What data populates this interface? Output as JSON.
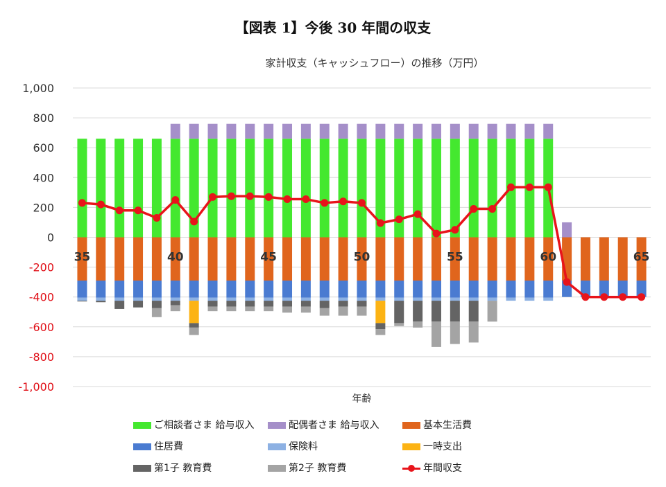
{
  "figure_title": "【図表 1】今後 30 年間の収支",
  "chart_data": {
    "type": "bar",
    "title": "家計収支（キャッシュフロー）の推移（万円）",
    "xlabel": "年齢",
    "ylabel": "",
    "ylim": [
      -1000,
      1000
    ],
    "y_ticks": [
      "1,000",
      "800",
      "600",
      "400",
      "200",
      "0",
      "-200",
      "-400",
      "-600",
      "-800",
      "-1,000"
    ],
    "x": [
      35,
      36,
      37,
      38,
      39,
      40,
      41,
      42,
      43,
      44,
      45,
      46,
      47,
      48,
      49,
      50,
      51,
      52,
      53,
      54,
      55,
      56,
      57,
      58,
      59,
      60,
      61,
      62,
      63,
      64,
      65
    ],
    "x_tick_labels": [
      "35",
      "40",
      "45",
      "50",
      "55",
      "60",
      "65"
    ],
    "stacked": true,
    "colors": {
      "salary_main": "#44e82f",
      "salary_spouse": "#a58fc9",
      "living": "#e0651d",
      "housing": "#4a7bd1",
      "insurance": "#8db1e3",
      "one_time": "#fcb314",
      "edu_child1": "#646464",
      "edu_child2": "#a4a4a4",
      "annual_balance": "#e8141b"
    },
    "series": [
      {
        "key": "salary_main",
        "name": "ご相談者さま 給与収入",
        "values": [
          660,
          660,
          660,
          660,
          660,
          660,
          660,
          660,
          660,
          660,
          660,
          660,
          660,
          660,
          660,
          660,
          660,
          660,
          660,
          660,
          660,
          660,
          660,
          660,
          660,
          660,
          0,
          0,
          0,
          0,
          0
        ]
      },
      {
        "key": "salary_spouse",
        "name": "配偶者さま 給与収入",
        "values": [
          0,
          0,
          0,
          0,
          0,
          100,
          100,
          100,
          100,
          100,
          100,
          100,
          100,
          100,
          100,
          100,
          100,
          100,
          100,
          100,
          100,
          100,
          100,
          100,
          100,
          100,
          100,
          0,
          0,
          0,
          0
        ]
      },
      {
        "key": "living",
        "name": "基本生活費",
        "values": [
          -290,
          -290,
          -290,
          -290,
          -290,
          -290,
          -290,
          -290,
          -290,
          -290,
          -290,
          -290,
          -290,
          -290,
          -290,
          -290,
          -290,
          -290,
          -290,
          -290,
          -290,
          -290,
          -290,
          -290,
          -290,
          -290,
          -290,
          -290,
          -290,
          -290,
          -290
        ]
      },
      {
        "key": "housing",
        "name": "住居費",
        "values": [
          -115,
          -115,
          -115,
          -115,
          -115,
          -115,
          -115,
          -115,
          -115,
          -115,
          -115,
          -115,
          -115,
          -115,
          -115,
          -115,
          -115,
          -115,
          -115,
          -115,
          -115,
          -115,
          -115,
          -115,
          -115,
          -115,
          -110,
          -110,
          -110,
          -110,
          -110
        ]
      },
      {
        "key": "insurance",
        "name": "保険料",
        "values": [
          -20,
          -20,
          -20,
          -20,
          -20,
          -20,
          -20,
          -20,
          -20,
          -20,
          -20,
          -20,
          -20,
          -20,
          -20,
          -20,
          -20,
          -20,
          -20,
          -20,
          -20,
          -20,
          -20,
          -20,
          -20,
          -20,
          0,
          0,
          0,
          0,
          0
        ]
      },
      {
        "key": "one_time",
        "name": "一時支出",
        "values": [
          0,
          0,
          0,
          0,
          0,
          0,
          -150,
          0,
          0,
          0,
          0,
          0,
          0,
          0,
          0,
          0,
          -150,
          0,
          0,
          0,
          0,
          0,
          0,
          0,
          0,
          0,
          0,
          0,
          0,
          0,
          0
        ]
      },
      {
        "key": "edu_child1",
        "name": "第1子 教育費",
        "values": [
          -5,
          -10,
          -55,
          -45,
          -50,
          -30,
          -30,
          -40,
          -40,
          -40,
          -40,
          -40,
          -40,
          -50,
          -40,
          -40,
          -40,
          -150,
          -140,
          -140,
          -140,
          -140,
          0,
          0,
          0,
          0,
          0,
          0,
          0,
          0,
          0
        ]
      },
      {
        "key": "edu_child2",
        "name": "第2子 教育費",
        "values": [
          0,
          0,
          0,
          0,
          -60,
          -40,
          -50,
          -30,
          -30,
          -30,
          -30,
          -40,
          -40,
          -50,
          -60,
          -60,
          -40,
          -20,
          -40,
          -170,
          -150,
          -140,
          -140,
          0,
          0,
          0,
          0,
          0,
          0,
          0,
          0
        ]
      }
    ],
    "line": {
      "key": "annual_balance",
      "name": "年間収支",
      "values": [
        230,
        220,
        180,
        180,
        130,
        250,
        105,
        270,
        275,
        275,
        270,
        255,
        255,
        230,
        240,
        230,
        95,
        120,
        155,
        25,
        50,
        190,
        190,
        335,
        335,
        335,
        -300,
        -400,
        -400,
        -400,
        -400
      ]
    },
    "legend_position": "bottom",
    "grid": true
  }
}
